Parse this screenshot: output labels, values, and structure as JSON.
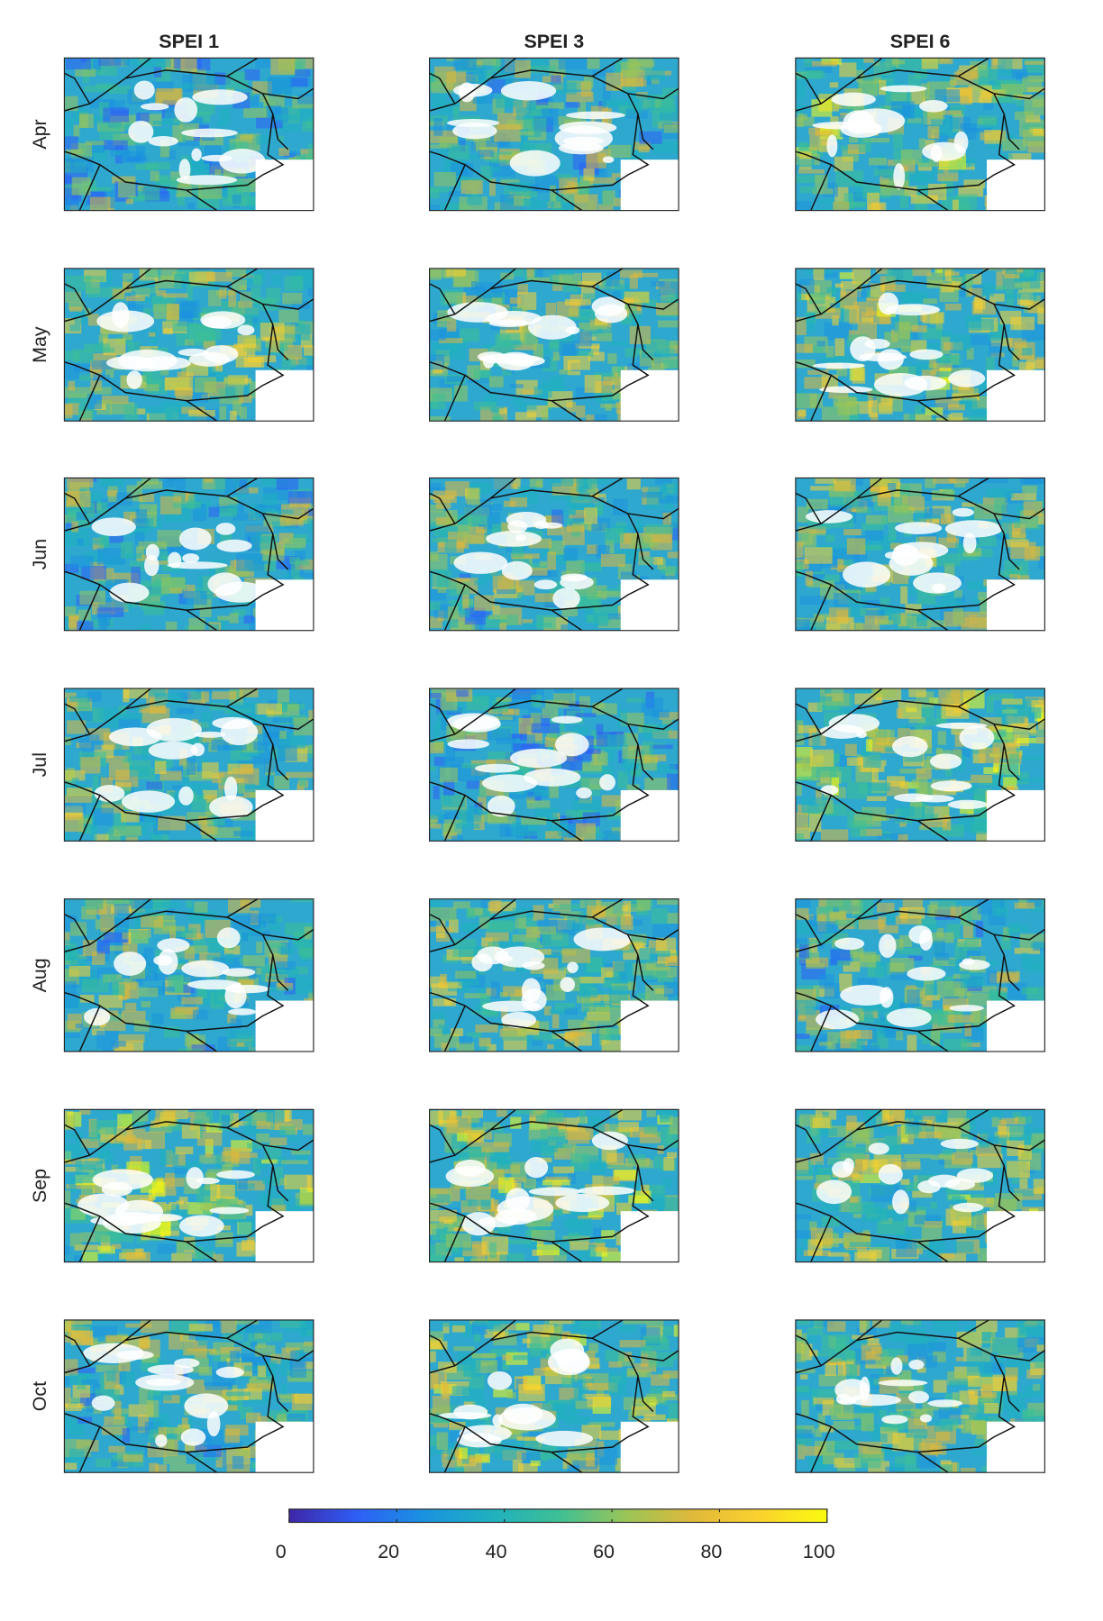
{
  "columns": [
    "SPEI 1",
    "SPEI 3",
    "SPEI 6"
  ],
  "rows": [
    "Apr",
    "May",
    "Jun",
    "Jul",
    "Aug",
    "Sep",
    "Oct"
  ],
  "colorbar": {
    "lim": [
      0,
      100
    ],
    "ticks": [
      0,
      20,
      40,
      60,
      80,
      100
    ],
    "colors": [
      "#3e26a8",
      "#2e5ef6",
      "#1a92e0",
      "#1fb0c0",
      "#3dbf95",
      "#9ac558",
      "#e0b83a",
      "#fbd22e",
      "#f9fb0e"
    ]
  }
}
